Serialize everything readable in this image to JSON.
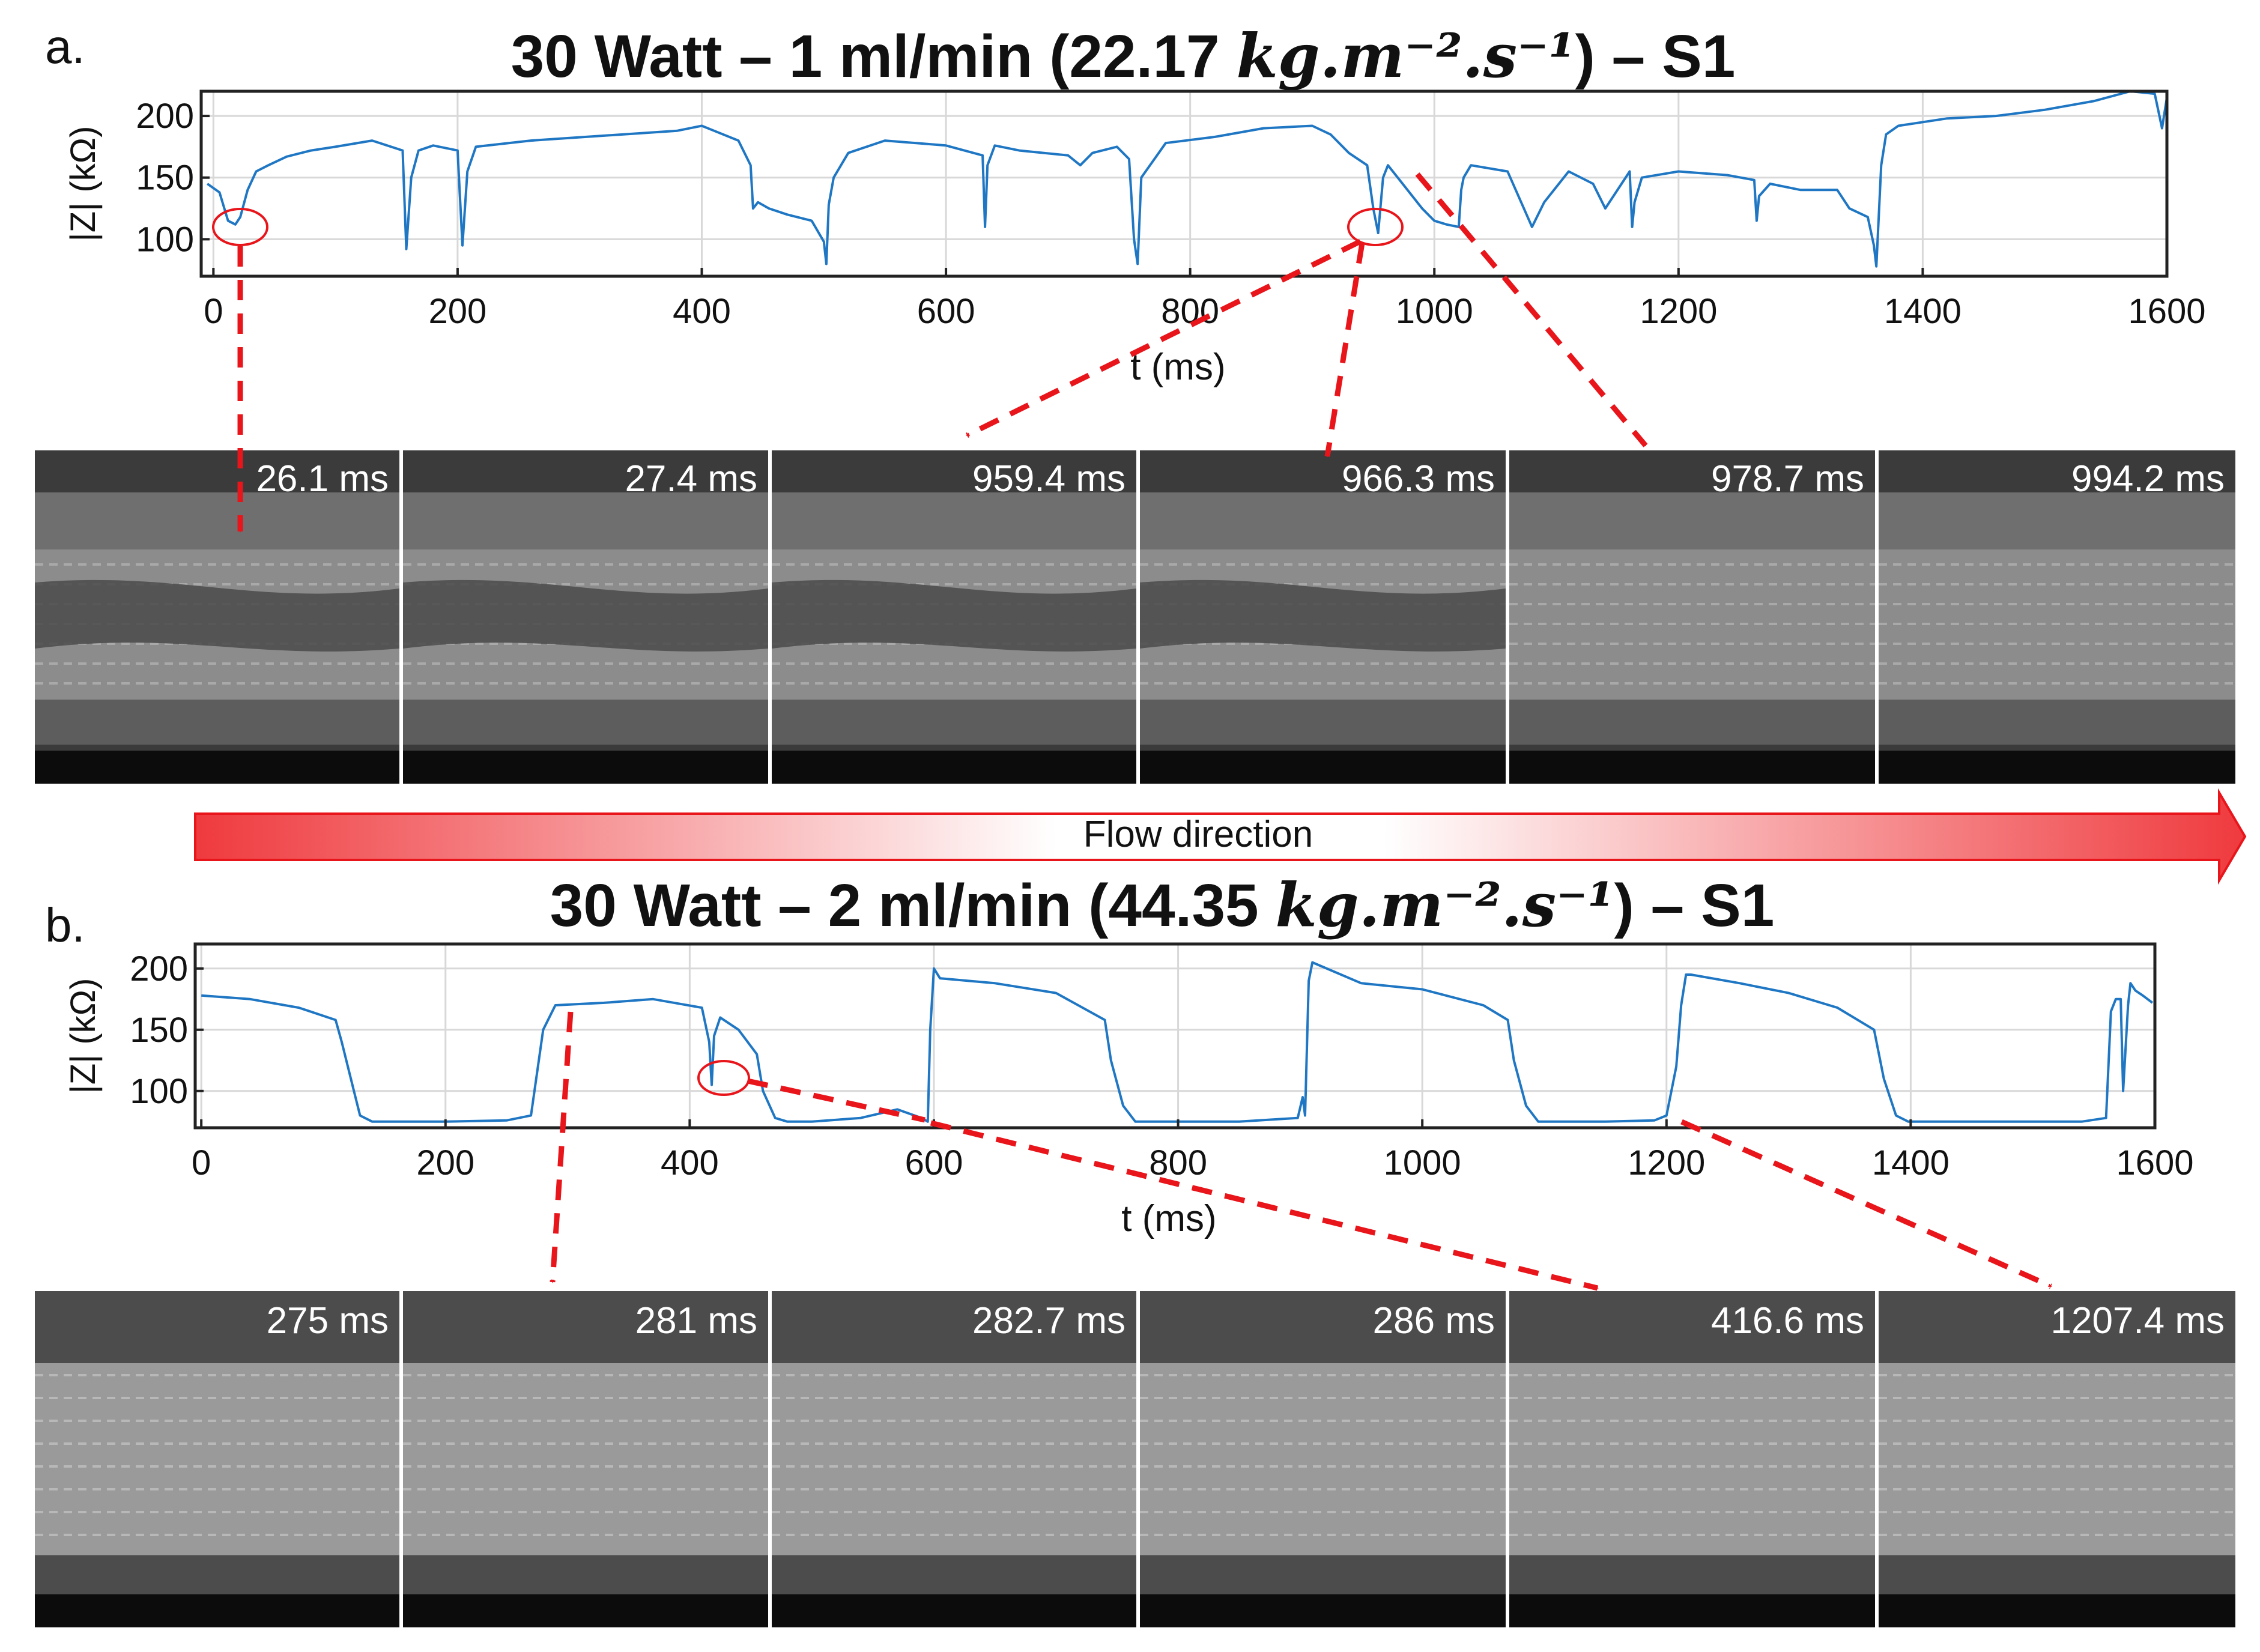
{
  "labels": {
    "panel_a": "a.",
    "panel_b": "b.",
    "flow_direction": "Flow direction"
  },
  "colors": {
    "trace": "#1f77c4",
    "annotation": "#e8151b",
    "grid": "#d8d8d8",
    "frame_bg": "#3a3a3a"
  },
  "chart_data": [
    {
      "type": "line",
      "title": "30 Watt – 1 ml/min (22.17 kg.m⁻².s⁻¹) – S1",
      "title_parts": {
        "prefix": "30 Watt – 1 ml/min (22.17 ",
        "math": "kg.m⁻².s⁻¹",
        "suffix": ") – S1"
      },
      "xlabel": "t (ms)",
      "ylabel": "|Z| (kΩ)",
      "xlim": [
        -10,
        1600
      ],
      "ylim": [
        70,
        220
      ],
      "xticks": [
        0,
        200,
        400,
        600,
        800,
        1000,
        1200,
        1400,
        1600
      ],
      "xtick_labels": [
        "0",
        "200",
        "400",
        "600",
        "800",
        "1000",
        "1200",
        "1400",
        "1600"
      ],
      "yticks": [
        100,
        150,
        200
      ],
      "ytick_labels": [
        "100",
        "150",
        "200"
      ],
      "grid": true,
      "series": [
        {
          "name": "|Z|",
          "x": [
            -5,
            5,
            12,
            18,
            22,
            28,
            35,
            45,
            60,
            80,
            100,
            130,
            155,
            158,
            162,
            168,
            180,
            200,
            204,
            208,
            215,
            260,
            320,
            380,
            400,
            410,
            430,
            440,
            442,
            446,
            455,
            470,
            490,
            500,
            502,
            504,
            508,
            520,
            550,
            600,
            630,
            632,
            634,
            640,
            660,
            700,
            710,
            720,
            740,
            750,
            754,
            757,
            760,
            780,
            820,
            860,
            900,
            915,
            930,
            945,
            950,
            954,
            958,
            962,
            970,
            990,
            1000,
            1010,
            1020,
            1022,
            1024,
            1030,
            1060,
            1080,
            1090,
            1110,
            1130,
            1140,
            1160,
            1162,
            1164,
            1170,
            1200,
            1240,
            1262,
            1264,
            1266,
            1275,
            1300,
            1330,
            1340,
            1355,
            1360,
            1362,
            1366,
            1370,
            1380,
            1420,
            1460,
            1500,
            1540,
            1570,
            1590,
            1596,
            1600
          ],
          "y": [
            145,
            138,
            115,
            112,
            118,
            140,
            155,
            160,
            167,
            172,
            175,
            180,
            172,
            92,
            150,
            172,
            176,
            172,
            95,
            155,
            175,
            180,
            184,
            188,
            192,
            188,
            180,
            160,
            125,
            130,
            125,
            120,
            115,
            98,
            80,
            128,
            150,
            170,
            180,
            176,
            168,
            110,
            160,
            176,
            172,
            168,
            160,
            170,
            175,
            165,
            100,
            80,
            150,
            178,
            183,
            190,
            192,
            185,
            170,
            160,
            125,
            105,
            150,
            160,
            150,
            125,
            115,
            112,
            110,
            140,
            150,
            160,
            155,
            110,
            130,
            155,
            145,
            125,
            155,
            110,
            130,
            150,
            155,
            152,
            148,
            115,
            135,
            145,
            140,
            140,
            125,
            118,
            95,
            78,
            160,
            185,
            192,
            198,
            200,
            205,
            212,
            220,
            218,
            190,
            215
          ]
        }
      ]
    },
    {
      "type": "line",
      "title": "30 Watt – 2 ml/min (44.35 kg.m⁻².s⁻¹) – S1",
      "title_parts": {
        "prefix": "30 Watt – 2 ml/min (44.35 ",
        "math": "kg.m⁻².s⁻¹",
        "suffix": ") – S1"
      },
      "xlabel": "t (ms)",
      "ylabel": "|Z| (kΩ)",
      "xlim": [
        -5,
        1600
      ],
      "ylim": [
        70,
        220
      ],
      "xticks": [
        0,
        200,
        400,
        600,
        800,
        1000,
        1200,
        1400,
        1600
      ],
      "xtick_labels": [
        "0",
        "200",
        "400",
        "600",
        "800",
        "1000",
        "1200",
        "1400",
        "1600"
      ],
      "yticks": [
        100,
        150,
        200
      ],
      "ytick_labels": [
        "100",
        "150",
        "200"
      ],
      "grid": true,
      "series": [
        {
          "name": "|Z|",
          "x": [
            0,
            40,
            80,
            110,
            115,
            125,
            130,
            140,
            170,
            200,
            250,
            270,
            280,
            290,
            330,
            370,
            410,
            416,
            418,
            420,
            425,
            440,
            455,
            460,
            470,
            480,
            500,
            540,
            570,
            590,
            595,
            597,
            600,
            605,
            650,
            700,
            740,
            745,
            755,
            765,
            800,
            850,
            898,
            902,
            904,
            907,
            910,
            950,
            1000,
            1050,
            1070,
            1075,
            1085,
            1095,
            1150,
            1190,
            1200,
            1208,
            1212,
            1216,
            1220,
            1260,
            1300,
            1340,
            1370,
            1378,
            1388,
            1398,
            1450,
            1500,
            1540,
            1560,
            1564,
            1568,
            1572,
            1574,
            1578,
            1580,
            1584,
            1590,
            1598
          ],
          "y": [
            178,
            175,
            168,
            158,
            140,
            100,
            80,
            75,
            75,
            75,
            76,
            80,
            150,
            170,
            172,
            175,
            168,
            140,
            105,
            145,
            160,
            150,
            130,
            100,
            78,
            75,
            75,
            78,
            85,
            78,
            75,
            150,
            200,
            192,
            188,
            180,
            158,
            125,
            88,
            75,
            75,
            75,
            78,
            95,
            80,
            190,
            205,
            188,
            183,
            170,
            158,
            125,
            88,
            75,
            75,
            76,
            80,
            120,
            170,
            195,
            195,
            188,
            180,
            168,
            150,
            110,
            80,
            75,
            75,
            75,
            75,
            78,
            165,
            175,
            175,
            100,
            170,
            188,
            182,
            178,
            172
          ]
        }
      ]
    }
  ],
  "frames_a": [
    {
      "label": "26.1 ms"
    },
    {
      "label": "27.4 ms"
    },
    {
      "label": "959.4 ms"
    },
    {
      "label": "966.3 ms"
    },
    {
      "label": "978.7 ms"
    },
    {
      "label": "994.2 ms"
    }
  ],
  "frames_b": [
    {
      "label": "275 ms"
    },
    {
      "label": "281 ms"
    },
    {
      "label": "282.7 ms"
    },
    {
      "label": "286 ms"
    },
    {
      "label": "416.6 ms"
    },
    {
      "label": "1207.4 ms"
    }
  ]
}
